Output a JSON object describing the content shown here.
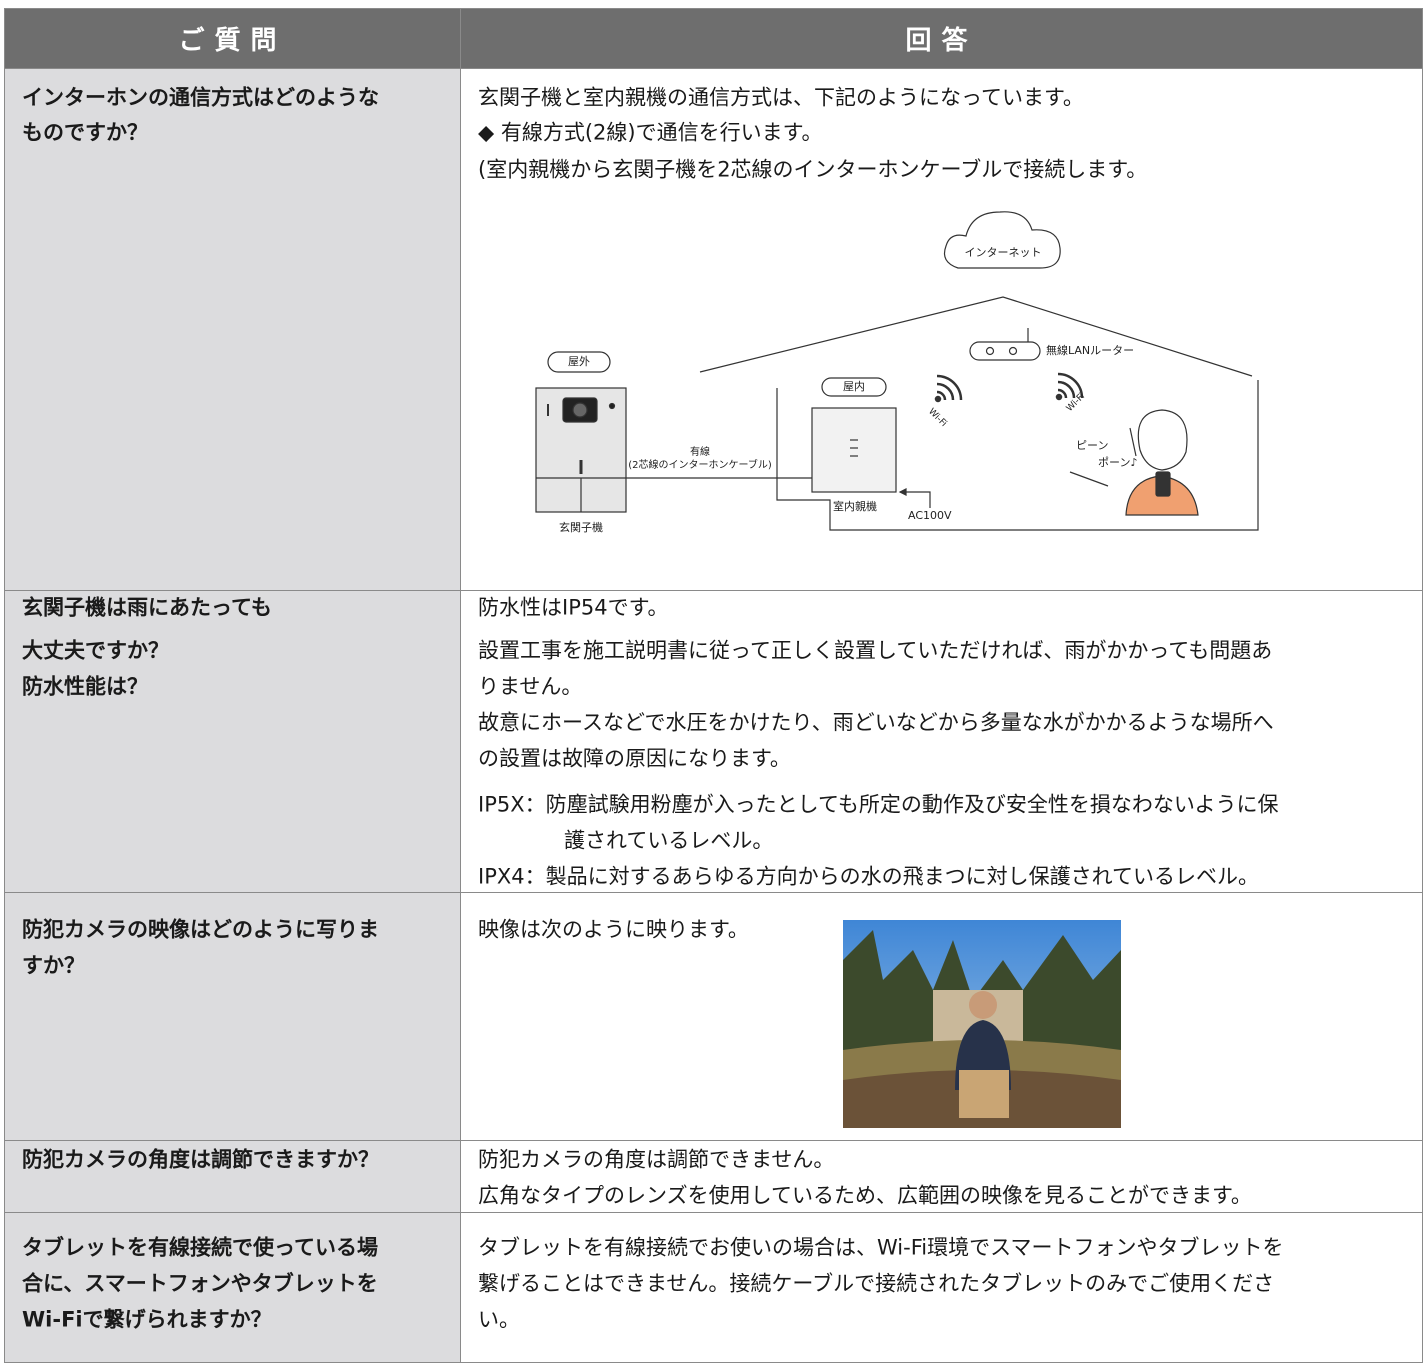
{
  "table": {
    "header": [
      "ご質問",
      "回答"
    ],
    "rows": [
      {
        "question": [
          "インターホンの通信方式はどのような",
          "ものですか？"
        ],
        "answer": [
          "玄関子機と室内親機の通信方式は、下記のようになっています。",
          "◆ 有線方式(2線)で通信を行います。",
          "(室内親機から玄関子機を2芯線のインターホンケーブルで接続します。"
        ]
      },
      {
        "question": [
          "玄関子機は雨にあたっても",
          "大丈夫ですか？",
          "防水性能は？"
        ],
        "answer": [
          "防水性はIP54です。",
          "設置工事を施工説明書に従って正しく設置していただければ、雨がかかっても問題あ",
          "りません。",
          "故意にホースなどで水圧をかけたり、雨どいなどから多量な水がかかるような場所へ",
          "の設置は故障の原因になります。",
          "IP5X：防塵試験用粉塵が入ったとしても所定の動作及び安全性を損なわないように保",
          "護されているレベル。",
          "IPX4：製品に対するあらゆる方向からの水の飛まつに対し保護されているレベル。"
        ]
      },
      {
        "question": [
          "防犯カメラの映像はどのように写りま",
          "すか？"
        ],
        "answer": [
          "映像は次のように映ります。"
        ]
      },
      {
        "question": [
          "防犯カメラの角度は調節できますか？"
        ],
        "answer": [
          "防犯カメラの角度は調節できません。",
          "広角なタイプのレンズを使用しているため、広範囲の映像を見ることができます。"
        ]
      },
      {
        "question": [
          "タブレットを有線接続で使っている場",
          "合に、スマートフォンやタブレットを",
          "Wi-Fiで繋げられますか？"
        ],
        "answer": [
          "タブレットを有線接続でお使いの場合は、Wi-Fi環境でスマートフォンやタブレットを",
          "繋げることはできません。接続ケーブルで接続されたタブレットのみでご使用くださ",
          "い。"
        ]
      }
    ]
  },
  "diagram": {
    "internet": "インターネット",
    "router": "無線LANルーター",
    "outdoor": "屋外",
    "indoor": "屋内",
    "wifi": [
      "Wi-Fi",
      "Wi-Fi"
    ],
    "wired": "有線",
    "cable": "(2芯線のインターホンケーブル)",
    "door_unit": "玄関子機",
    "main_unit": "室内親機",
    "power": "AC100V",
    "chime": [
      "ピーン",
      "ポーン♪"
    ]
  }
}
